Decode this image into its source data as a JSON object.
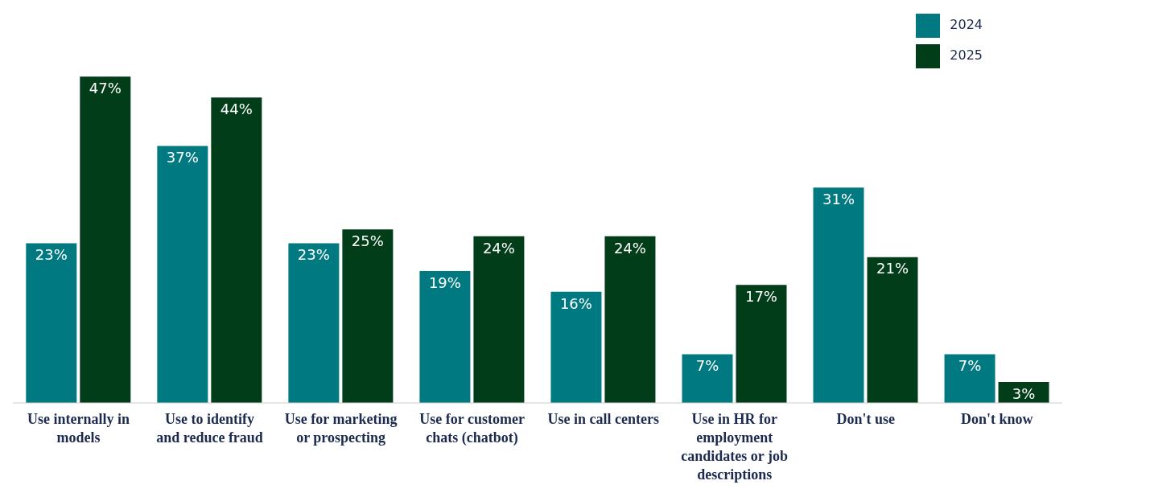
{
  "chart_data": {
    "type": "bar",
    "categories": [
      "Use internally in models",
      "Use to identify and reduce fraud",
      "Use for marketing or prospecting",
      "Use for customer chats (chatbot)",
      "Use in call centers",
      "Use in HR for employment candidates or job descriptions",
      "Don't use",
      "Don't know"
    ],
    "series": [
      {
        "name": "2024",
        "color": "#007a80",
        "values": [
          23,
          37,
          23,
          19,
          16,
          7,
          31,
          7
        ],
        "value_labels": [
          "23%",
          "37%",
          "23%",
          "19%",
          "16%",
          "7%",
          "31%",
          "7%"
        ]
      },
      {
        "name": "2025",
        "color": "#003d18",
        "values": [
          47,
          44,
          25,
          24,
          24,
          17,
          21,
          3
        ],
        "value_labels": [
          "47%",
          "44%",
          "25%",
          "24%",
          "24%",
          "17%",
          "21%",
          "3%"
        ]
      }
    ],
    "tick_labels": "x",
    "legend": "top right",
    "grid": false
  }
}
